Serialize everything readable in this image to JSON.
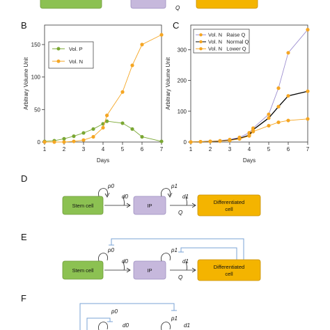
{
  "panels": {
    "b": "B",
    "c": "C",
    "d": "D",
    "e": "E",
    "f": "F"
  },
  "top_strip": {
    "colors": [
      "#8cc152",
      "#c6b8dc",
      "#f4b400"
    ],
    "q_label": "Q"
  },
  "chart_data": [
    {
      "type": "line",
      "panel": "B",
      "xlabel": "Days",
      "ylabel": "Arbitrary Volume Unit",
      "xlim": [
        1,
        7
      ],
      "ylim": [
        0,
        180
      ],
      "x_ticks": [
        1,
        2,
        3,
        4,
        5,
        6,
        7
      ],
      "y_ticks": [
        0,
        50,
        100,
        150
      ],
      "legend_position": "top-left",
      "series": [
        {
          "name": "Vol. P",
          "color": "#7aa733",
          "x": [
            1,
            1.5,
            2,
            2.5,
            3,
            3.5,
            4,
            4.2,
            5,
            5.5,
            6,
            7
          ],
          "y": [
            1,
            2,
            5,
            9,
            14,
            20,
            28,
            32,
            29,
            20,
            8,
            1
          ]
        },
        {
          "name": "Vol. N",
          "color": "#f5a623",
          "x": [
            1,
            1.5,
            2,
            2.5,
            3,
            3.5,
            4,
            4.2,
            5,
            5.5,
            6,
            7
          ],
          "y": [
            0,
            0,
            0,
            1,
            3,
            8,
            22,
            41,
            77,
            118,
            150,
            165
          ]
        }
      ]
    },
    {
      "type": "line",
      "panel": "C",
      "xlabel": "Days",
      "ylabel": "Arbitrary Volume Unit",
      "xlim": [
        1,
        7
      ],
      "ylim": [
        0,
        380
      ],
      "x_ticks": [
        1,
        2,
        3,
        4,
        5,
        6,
        7
      ],
      "y_ticks": [
        0,
        100,
        200,
        300
      ],
      "legend_position": "top-left",
      "series": [
        {
          "name": "Vol. N   Raise Q",
          "color": "#9d8fd0",
          "marker": "#f5a623",
          "x": [
            1,
            1.5,
            2,
            2.5,
            3,
            3.5,
            4,
            4.2,
            5,
            5.5,
            6,
            7
          ],
          "y": [
            0,
            1,
            2,
            4,
            8,
            15,
            30,
            45,
            90,
            175,
            290,
            365
          ]
        },
        {
          "name": "Vol. N   Normal Q",
          "color": "#000000",
          "marker": "#f5a623",
          "x": [
            1,
            1.5,
            2,
            2.5,
            3,
            3.5,
            4,
            4.2,
            5,
            5.5,
            6,
            7
          ],
          "y": [
            0,
            1,
            2,
            3,
            6,
            12,
            22,
            40,
            78,
            115,
            150,
            165
          ]
        },
        {
          "name": "Vol. N   Lower Q",
          "color": "#f5a623",
          "marker": "#f5a623",
          "x": [
            1,
            1.5,
            2,
            2.5,
            3,
            3.5,
            4,
            4.2,
            5,
            5.5,
            6,
            7
          ],
          "y": [
            0,
            1,
            2,
            3,
            5,
            10,
            20,
            34,
            53,
            64,
            70,
            75
          ]
        }
      ]
    }
  ],
  "diagrams": {
    "stem_cell": "Stem cell",
    "ip": "IP",
    "differentiated": [
      "Differentiated",
      "cell"
    ],
    "p0": "p0",
    "d0": "d0",
    "p1": "p1",
    "d1": "d1",
    "q": "Q",
    "colors": {
      "stem": "#8cc152",
      "ip": "#c6b8dc",
      "diff": "#f4b400",
      "feedback": "#7aa3d6"
    }
  }
}
